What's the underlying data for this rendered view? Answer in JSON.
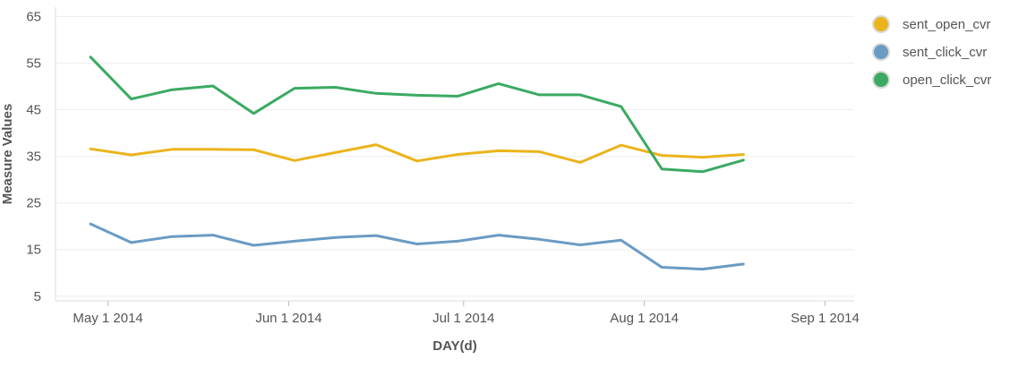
{
  "chart_data": {
    "type": "line",
    "xlabel": "DAY(d)",
    "ylabel": "Measure Values",
    "ylim": [
      4,
      67
    ],
    "yticks": [
      5,
      15,
      25,
      35,
      45,
      55,
      65
    ],
    "xlim": [
      "2014-04-22",
      "2014-09-06"
    ],
    "xticks": [
      {
        "date": "2014-05-01",
        "label": "May 1 2014"
      },
      {
        "date": "2014-06-01",
        "label": "Jun 1 2014"
      },
      {
        "date": "2014-07-01",
        "label": "Jul 1 2014"
      },
      {
        "date": "2014-08-01",
        "label": "Aug 1 2014"
      },
      {
        "date": "2014-09-01",
        "label": "Sep 1 2014"
      }
    ],
    "x": [
      "2014-04-28",
      "2014-05-05",
      "2014-05-12",
      "2014-05-19",
      "2014-05-26",
      "2014-06-02",
      "2014-06-09",
      "2014-06-16",
      "2014-06-23",
      "2014-06-30",
      "2014-07-07",
      "2014-07-14",
      "2014-07-21",
      "2014-07-28",
      "2014-08-04",
      "2014-08-11",
      "2014-08-18"
    ],
    "grid": true,
    "legend_position": "right",
    "series": [
      {
        "name": "sent_open_cvr",
        "color": "#ebb41c",
        "values": [
          36.6,
          35.3,
          36.5,
          36.5,
          36.4,
          34.1,
          35.8,
          37.5,
          34.0,
          35.4,
          36.2,
          36.0,
          33.7,
          37.4,
          35.2,
          34.8,
          35.4
        ]
      },
      {
        "name": "sent_click_cvr",
        "color": "#6a9bc3",
        "values": [
          20.5,
          16.5,
          17.8,
          18.1,
          15.9,
          16.8,
          17.6,
          18.0,
          16.2,
          16.8,
          18.1,
          17.2,
          16.0,
          17.0,
          11.2,
          10.8,
          11.9
        ]
      },
      {
        "name": "open_click_cvr",
        "color": "#3aaa62",
        "values": [
          56.3,
          47.3,
          49.3,
          50.1,
          44.2,
          49.6,
          49.8,
          48.5,
          48.1,
          47.9,
          50.6,
          48.2,
          48.2,
          45.7,
          32.3,
          31.7,
          34.2
        ]
      }
    ]
  }
}
